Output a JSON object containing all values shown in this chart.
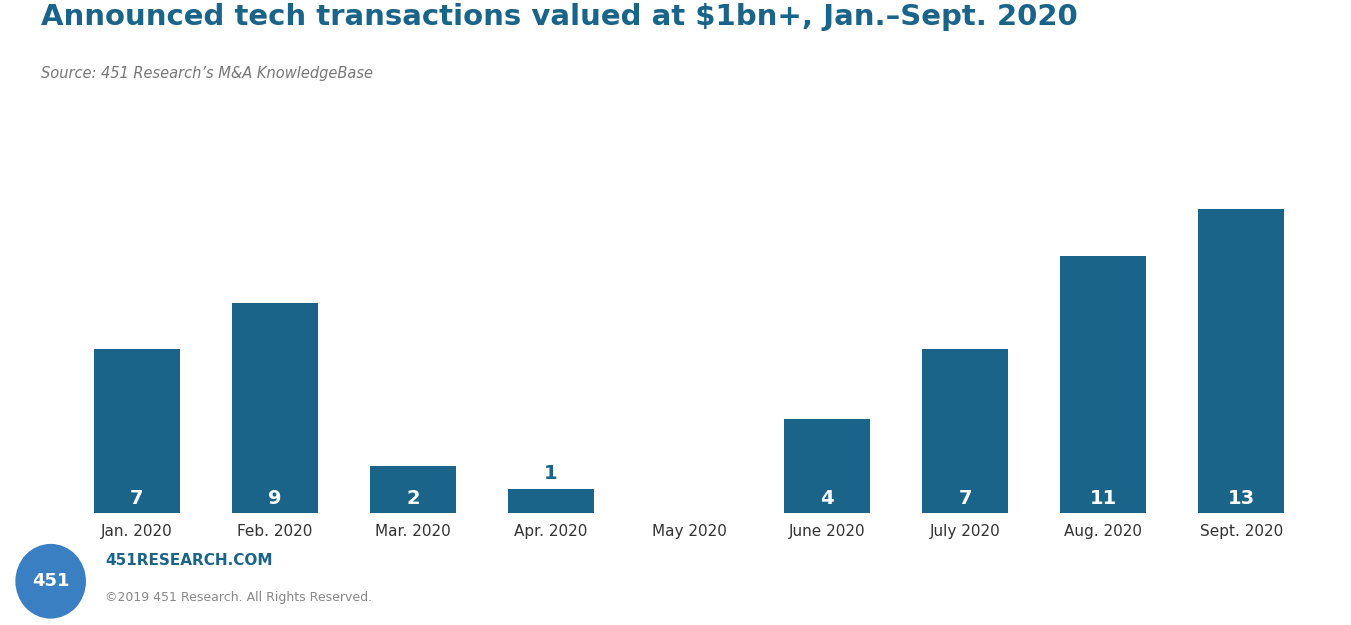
{
  "title": "Announced tech transactions valued at $1bn+, Jan.–Sept. 2020",
  "source": "Source: 451 Research’s M&A KnowledgeBase",
  "categories": [
    "Jan. 2020",
    "Feb. 2020",
    "Mar. 2020",
    "Apr. 2020",
    "May 2020",
    "June 2020",
    "July 2020",
    "Aug. 2020",
    "Sept. 2020"
  ],
  "values": [
    7,
    9,
    2,
    1,
    0,
    4,
    7,
    11,
    13
  ],
  "bar_color": "#1a6389",
  "background_color": "#ffffff",
  "title_color": "#1a6389",
  "source_color": "#777777",
  "bar_label_color": "#ffffff",
  "bar_label_color_special": "#1a6389",
  "grid_color": "#aaaaaa",
  "footer_website": "451RESEARCH.COM",
  "footer_copyright": "©2019 451 Research. All Rights Reserved.",
  "footer_website_color": "#1a6389",
  "footer_copyright_color": "#888888",
  "logo_bg_color": "#3a7fc1",
  "logo_text": "451",
  "logo_text_color": "#ffffff",
  "ylim_max": 15,
  "grid_step": 2
}
